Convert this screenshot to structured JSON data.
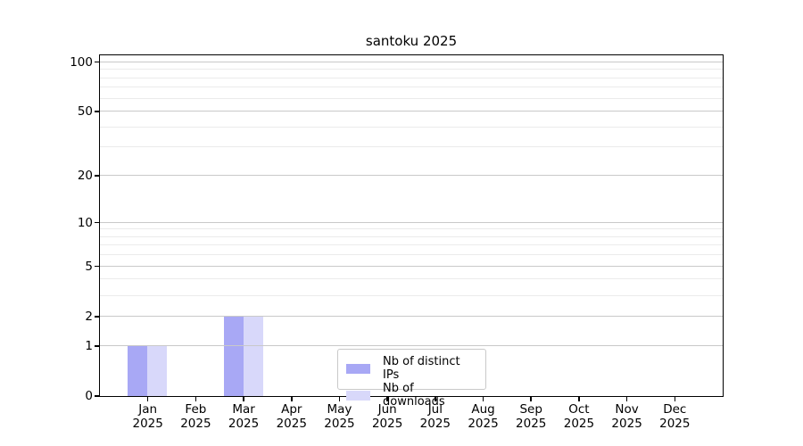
{
  "chart_data": {
    "type": "bar",
    "title": "santoku 2025",
    "categories": [
      "Jan",
      "Feb",
      "Mar",
      "Apr",
      "May",
      "Jun",
      "Jul",
      "Aug",
      "Sep",
      "Oct",
      "Nov",
      "Dec"
    ],
    "year_label": "2025",
    "series": [
      {
        "name": "Nb of distinct IPs",
        "color": "#a8a8f5",
        "values": [
          1,
          0,
          2,
          0,
          0,
          0,
          0,
          0,
          0,
          0,
          0,
          0
        ]
      },
      {
        "name": "Nb of downloads",
        "color": "#d8d8fa",
        "values": [
          1,
          0,
          2,
          0,
          0,
          0,
          0,
          0,
          0,
          0,
          0,
          0
        ]
      }
    ],
    "xlabel": "",
    "ylabel": "",
    "yscale": "log1p",
    "ylim": [
      0,
      110
    ],
    "yticks": [
      0,
      1,
      2,
      5,
      10,
      20,
      50,
      100
    ],
    "ytick_labels": [
      "0",
      "1",
      "2",
      "5",
      "10",
      "20",
      "50",
      "100"
    ],
    "grid_major_values": [
      1,
      2,
      5,
      10,
      20,
      50,
      100
    ],
    "grid_minor_values": [
      3,
      4,
      6,
      7,
      8,
      9,
      30,
      40,
      60,
      70,
      80,
      90
    ],
    "grid": "horizontal, above bars",
    "legend_position": "lower center",
    "colors": {
      "major_grid": "#c9c9c9",
      "minor_grid": "#ebebeb",
      "axis": "#000000",
      "text": "#000000",
      "legend_border": "#c9c9c9",
      "background": "#ffffff"
    }
  }
}
